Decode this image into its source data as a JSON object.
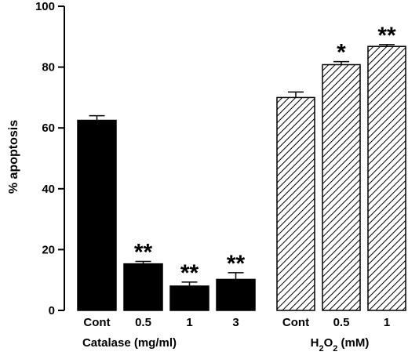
{
  "chart_data": {
    "type": "bar",
    "ylabel": "% apoptosis",
    "ylim": [
      0,
      100
    ],
    "yticks": [
      "0",
      "20",
      "40",
      "60",
      "80",
      "100"
    ],
    "grid": false,
    "groups": [
      {
        "label": "Catalase (mg/ml)",
        "fill": "solid",
        "color": "#000000",
        "categories": [
          "Cont",
          "0.5",
          "1",
          "3"
        ],
        "values": [
          62.5,
          15.3,
          8.0,
          10.2
        ],
        "errors": [
          1.5,
          0.8,
          1.3,
          2.2
        ],
        "significance": [
          "",
          "**",
          "**",
          "**"
        ]
      },
      {
        "label": "H2O2 (mM)",
        "fill": "hatched",
        "color": "#000000",
        "categories": [
          "Cont",
          "0.5",
          "1"
        ],
        "values": [
          70.0,
          80.8,
          86.8
        ],
        "errors": [
          1.8,
          1.0,
          0.6
        ],
        "significance": [
          "",
          "*",
          "**"
        ]
      }
    ]
  }
}
